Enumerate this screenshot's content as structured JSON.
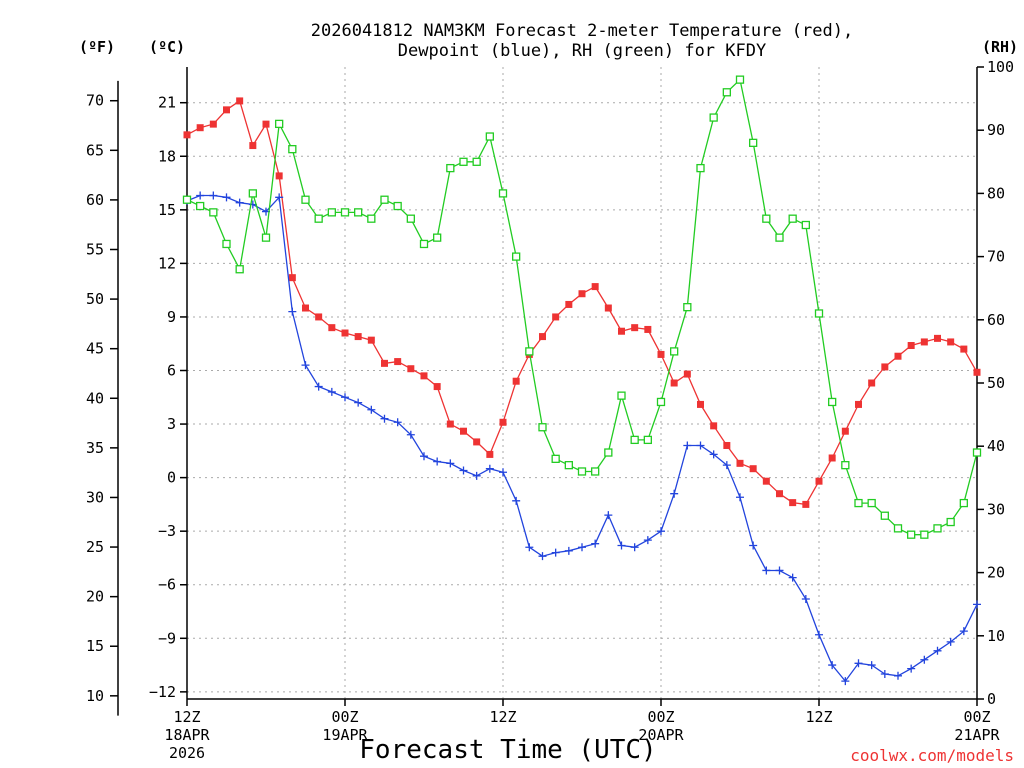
{
  "chart_data": {
    "type": "line",
    "title_line1": "2026041812 NAM3KM Forecast 2-meter Temperature (red),",
    "title_line2": "Dewpoint (blue), RH (green) for KFDY",
    "xlabel": "Forecast Time (UTC)",
    "credit": "coolwx.com/models",
    "units": {
      "left_f": "(ºF)",
      "left_c": "(ºC)",
      "right": "(RH)"
    },
    "x_range_hours": [
      0,
      60
    ],
    "celsius_range": [
      -12.4,
      23
    ],
    "rh_range": [
      0,
      100
    ],
    "x_ticks": [
      {
        "hour": 0,
        "lines": [
          "12Z",
          "18APR",
          "2026"
        ]
      },
      {
        "hour": 12,
        "lines": [
          "00Z",
          "19APR"
        ]
      },
      {
        "hour": 24,
        "lines": [
          "12Z"
        ]
      },
      {
        "hour": 36,
        "lines": [
          "00Z",
          "20APR"
        ]
      },
      {
        "hour": 48,
        "lines": [
          "12Z"
        ]
      },
      {
        "hour": 60,
        "lines": [
          "00Z",
          "21APR"
        ]
      }
    ],
    "fahrenheit_ticks": [
      "10",
      "15",
      "20",
      "25",
      "30",
      "35",
      "40",
      "45",
      "50",
      "55",
      "60",
      "65",
      "70"
    ],
    "celsius_ticks": [
      "−12",
      "−9",
      "−6",
      "−3",
      "0",
      "3",
      "6",
      "9",
      "12",
      "15",
      "18",
      "21"
    ],
    "rh_ticks": [
      "0",
      "10",
      "20",
      "30",
      "40",
      "50",
      "60",
      "70",
      "80",
      "90",
      "100"
    ],
    "hours": [
      0,
      1,
      2,
      3,
      4,
      5,
      6,
      7,
      8,
      9,
      10,
      11,
      12,
      13,
      14,
      15,
      16,
      17,
      18,
      19,
      20,
      21,
      22,
      23,
      24,
      25,
      26,
      27,
      28,
      29,
      30,
      31,
      32,
      33,
      34,
      35,
      36,
      37,
      38,
      39,
      40,
      41,
      42,
      43,
      44,
      45,
      46,
      47,
      48,
      49,
      50,
      51,
      52,
      53,
      54,
      55,
      56,
      57,
      58,
      59,
      60
    ],
    "series": [
      {
        "name": "2-meter Temperature",
        "unit": "C",
        "color": "#ee3333",
        "marker": "filled-square",
        "values": [
          19.2,
          19.6,
          19.8,
          20.6,
          21.1,
          18.6,
          19.8,
          16.9,
          11.2,
          9.5,
          9.0,
          8.4,
          8.1,
          7.9,
          7.7,
          6.4,
          6.5,
          6.1,
          5.7,
          5.1,
          3.0,
          2.6,
          2.0,
          1.3,
          3.1,
          5.4,
          6.9,
          7.9,
          9.0,
          9.7,
          10.3,
          10.7,
          9.5,
          8.2,
          8.4,
          8.3,
          6.9,
          5.3,
          5.8,
          4.1,
          2.9,
          1.8,
          0.8,
          0.5,
          -0.2,
          -0.9,
          -1.4,
          -1.5,
          -0.2,
          1.1,
          2.6,
          4.1,
          5.3,
          6.2,
          6.8,
          7.4,
          7.6,
          7.8,
          7.6,
          7.2,
          5.9
        ]
      },
      {
        "name": "Dewpoint",
        "unit": "C",
        "color": "#2244dd",
        "marker": "plus",
        "values": [
          15.5,
          15.8,
          15.8,
          15.7,
          15.4,
          15.3,
          14.9,
          15.7,
          9.3,
          6.3,
          5.1,
          4.8,
          4.5,
          4.2,
          3.8,
          3.3,
          3.1,
          2.4,
          1.2,
          0.9,
          0.8,
          0.4,
          0.1,
          0.5,
          0.3,
          -1.3,
          -3.9,
          -4.4,
          -4.2,
          -4.1,
          -3.9,
          -3.7,
          -2.1,
          -3.8,
          -3.9,
          -3.5,
          -3.0,
          -0.9,
          1.8,
          1.8,
          1.3,
          0.7,
          -1.1,
          -3.8,
          -5.2,
          -5.2,
          -5.6,
          -6.8,
          -8.8,
          -10.5,
          -11.4,
          -10.4,
          -10.5,
          -11.0,
          -11.1,
          -10.7,
          -10.2,
          -9.7,
          -9.2,
          -8.6,
          -7.1
        ]
      },
      {
        "name": "Relative Humidity",
        "unit": "%",
        "color": "#22cc22",
        "marker": "open-square",
        "values": [
          79,
          78,
          77,
          72,
          68,
          80,
          73,
          91,
          87,
          79,
          76,
          77,
          77,
          77,
          76,
          79,
          78,
          76,
          72,
          73,
          84,
          85,
          85,
          89,
          80,
          70,
          55,
          43,
          38,
          37,
          36,
          36,
          39,
          48,
          41,
          41,
          47,
          55,
          62,
          84,
          92,
          96,
          98,
          88,
          76,
          73,
          76,
          75,
          61,
          47,
          37,
          31,
          31,
          29,
          27,
          26,
          26,
          27,
          28,
          31,
          39
        ]
      }
    ]
  }
}
